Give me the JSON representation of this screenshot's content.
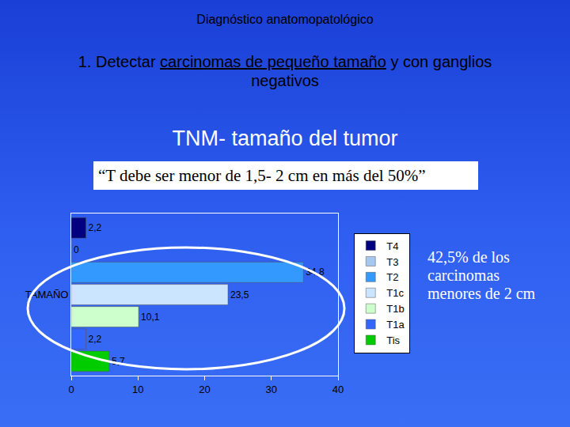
{
  "header": "Diagnóstico anatomopatológico",
  "subtitle": {
    "before": "1. Detectar ",
    "underlined": "carcinomas de pequeño tamaño",
    "after": " y con ganglios negativos"
  },
  "section_title": "TNM- tamaño del tumor",
  "quote": "“T debe ser menor de 1,5- 2 cm en más del 50%”",
  "side_note": "42,5% de los carcinomas menores de 2 cm",
  "chart_data": {
    "type": "bar",
    "orientation": "horizontal",
    "categories": [
      "TAMAÑO"
    ],
    "series": [
      {
        "name": "T4",
        "color": "#000080",
        "values": [
          2.2
        ],
        "value_labels": [
          "2,2"
        ]
      },
      {
        "name": "T3",
        "color": "#a6c8f0",
        "values": [
          0
        ],
        "value_labels": [
          "0"
        ]
      },
      {
        "name": "T2",
        "color": "#3399ff",
        "values": [
          34.8
        ],
        "value_labels": [
          "34,8"
        ]
      },
      {
        "name": "T1c",
        "color": "#cce5ff",
        "values": [
          23.5
        ],
        "value_labels": [
          "23,5"
        ]
      },
      {
        "name": "T1b",
        "color": "#ccffcc",
        "values": [
          10.1
        ],
        "value_labels": [
          "10,1"
        ]
      },
      {
        "name": "T1a",
        "color": "#3366ff",
        "values": [
          2.2
        ],
        "value_labels": [
          "2,2"
        ]
      },
      {
        "name": "Tis",
        "color": "#00cc00",
        "values": [
          5.7
        ],
        "value_labels": [
          "5,7"
        ]
      }
    ],
    "xlim": [
      0,
      40
    ],
    "xticks": [
      0,
      10,
      20,
      30,
      40
    ],
    "grid": false,
    "legend": "right",
    "data_labels": true
  }
}
